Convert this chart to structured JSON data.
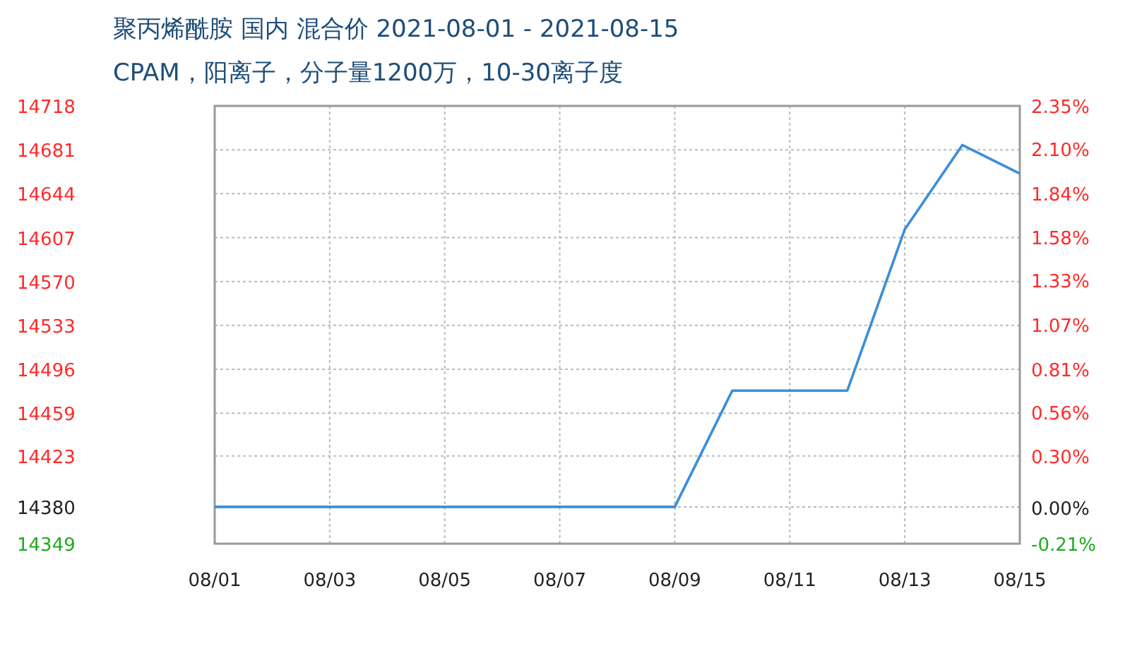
{
  "chart_data": {
    "type": "line",
    "title": "聚丙烯酰胺 国内 混合价 2021-08-01 - 2021-08-15",
    "subtitle": "CPAM，阳离子，分子量1200万，10-30离子度",
    "categories": [
      "08/01",
      null,
      "08/03",
      null,
      "08/05",
      null,
      "08/07",
      null,
      "08/09",
      null,
      "08/11",
      null,
      "08/13",
      null,
      "08/15"
    ],
    "series": [
      {
        "color": "#3b8ed8",
        "values": [
          14380,
          14380,
          14380,
          14380,
          14380,
          14380,
          14380,
          14380,
          14380,
          14478,
          14478,
          14478,
          14614,
          14685,
          14661
        ]
      }
    ],
    "ylim": [
      14349,
      14718
    ],
    "yticks": [
      14349,
      14380,
      14423,
      14459,
      14496,
      14533,
      14570,
      14607,
      14644,
      14681,
      14718
    ],
    "y2lim": [
      -0.21,
      2.35
    ],
    "y2ticks": [
      {
        "value": -0.21,
        "label": "-0.21%"
      },
      {
        "value": 0,
        "label": "0.00%"
      },
      {
        "value": 0.3,
        "label": "0.30%"
      },
      {
        "value": 0.56,
        "label": "0.56%"
      },
      {
        "value": 0.81,
        "label": "0.81%"
      },
      {
        "value": 1.07,
        "label": "1.07%"
      },
      {
        "value": 1.33,
        "label": "1.33%"
      },
      {
        "value": 1.58,
        "label": "1.58%"
      },
      {
        "value": 1.84,
        "label": "1.84%"
      },
      {
        "value": 2.1,
        "label": "2.10%"
      },
      {
        "value": 2.35,
        "label": "2.35%"
      }
    ],
    "grid": true
  }
}
